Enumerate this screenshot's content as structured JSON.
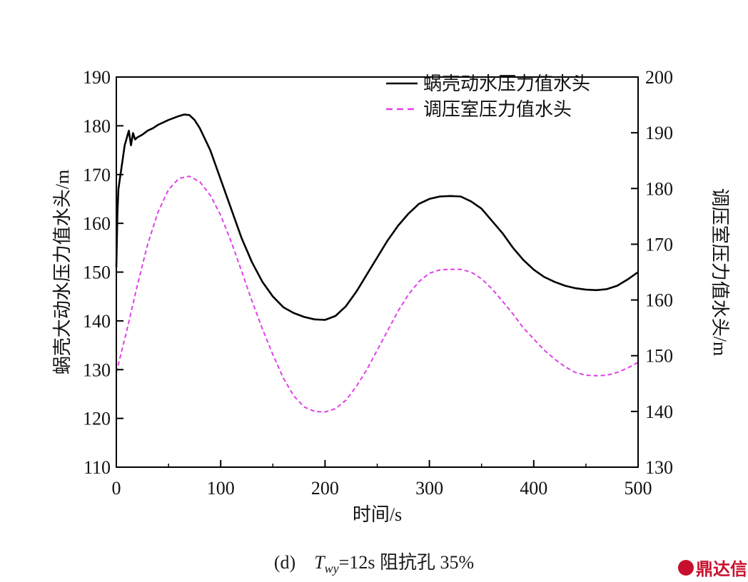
{
  "chart_data": {
    "type": "line",
    "title": "",
    "xlabel": "时间/s",
    "ylabel_left": "蜗壳大动水压力值水头/m",
    "ylabel_right": "调压室压力值水头/m",
    "xlim": [
      0,
      500
    ],
    "ylim_left": [
      110,
      190
    ],
    "ylim_right": [
      130,
      200
    ],
    "x_ticks": [
      "0",
      "100",
      "200",
      "300",
      "400",
      "500"
    ],
    "y_ticks_left": [
      "110",
      "120",
      "130",
      "140",
      "150",
      "160",
      "170",
      "180",
      "190"
    ],
    "y_ticks_right": [
      "130",
      "140",
      "150",
      "160",
      "170",
      "180",
      "190",
      "200"
    ],
    "legend_position": "top-right",
    "series": [
      {
        "name": "蜗壳动水压力值水头",
        "axis": "left",
        "color": "#000000",
        "style": "solid",
        "x": [
          0,
          1,
          2,
          4,
          6,
          8,
          10,
          12,
          14,
          16,
          18,
          20,
          25,
          30,
          35,
          40,
          50,
          60,
          65,
          70,
          75,
          80,
          90,
          100,
          110,
          120,
          130,
          140,
          150,
          160,
          170,
          180,
          190,
          200,
          210,
          220,
          230,
          240,
          250,
          260,
          270,
          280,
          290,
          300,
          310,
          320,
          330,
          340,
          350,
          360,
          370,
          380,
          390,
          400,
          410,
          420,
          430,
          440,
          450,
          460,
          470,
          480,
          490,
          500
        ],
        "values": [
          151,
          162,
          167,
          170,
          173,
          176,
          177.5,
          179,
          176,
          178.5,
          177.2,
          177.6,
          178.2,
          179,
          179.5,
          180.2,
          181.2,
          182,
          182.3,
          182.2,
          181.2,
          179.5,
          175,
          169,
          163,
          157,
          152,
          148,
          145,
          142.8,
          141.6,
          140.8,
          140.3,
          140.2,
          141,
          143,
          146,
          149.5,
          153,
          156.5,
          159.5,
          162,
          164,
          165,
          165.5,
          165.6,
          165.5,
          164.5,
          163,
          160.5,
          158,
          155,
          152.5,
          150.5,
          149,
          148,
          147.2,
          146.7,
          146.4,
          146.3,
          146.5,
          147.2,
          148.5,
          150
        ]
      },
      {
        "name": "调压室压力值水头",
        "axis": "right",
        "color": "#e040e8",
        "style": "dashed",
        "x": [
          0,
          10,
          20,
          30,
          40,
          50,
          60,
          70,
          80,
          90,
          100,
          110,
          120,
          130,
          140,
          150,
          160,
          170,
          180,
          190,
          200,
          210,
          220,
          230,
          240,
          250,
          260,
          270,
          280,
          290,
          300,
          310,
          320,
          330,
          340,
          350,
          360,
          370,
          380,
          390,
          400,
          410,
          420,
          430,
          440,
          450,
          460,
          470,
          480,
          490,
          500
        ],
        "values": [
          147,
          154.5,
          162.5,
          170,
          175.8,
          179.8,
          181.8,
          182.2,
          181.2,
          178.8,
          175.2,
          170.5,
          165.2,
          159.8,
          154.8,
          150.2,
          146,
          142.8,
          140.8,
          140,
          139.9,
          140.5,
          142,
          144.5,
          147.5,
          151,
          154.5,
          158,
          161,
          163.3,
          164.8,
          165.4,
          165.5,
          165.5,
          165,
          163.8,
          162,
          159.8,
          157.5,
          155,
          153,
          151,
          149.4,
          148,
          147,
          146.5,
          146.4,
          146.5,
          147,
          147.8,
          148.8
        ]
      }
    ]
  },
  "caption": {
    "prefix": "(d)",
    "var_main": "T",
    "var_sub": "wy",
    "rest": "=12s 阻抗孔 35%"
  },
  "watermark": "鼎达信"
}
